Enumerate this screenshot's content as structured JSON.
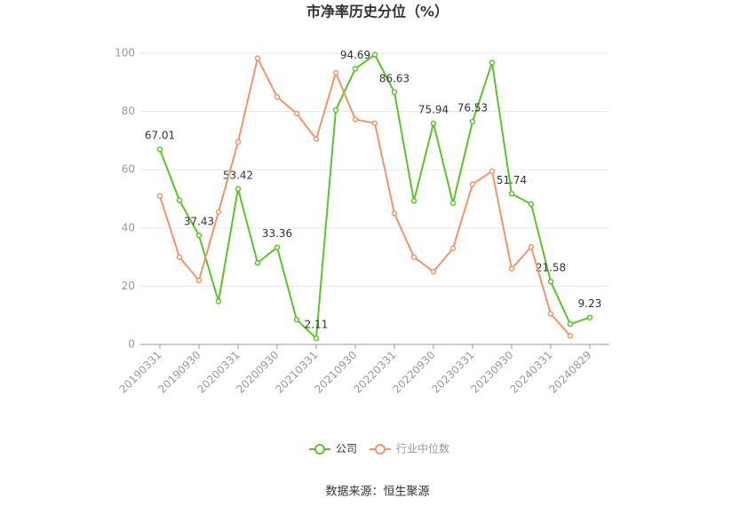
{
  "chart_data": {
    "type": "line",
    "title": "市净率历史分位（%）",
    "source": "数据来源：恒生聚源",
    "categories": [
      "20190331",
      null,
      "20190930",
      null,
      "20200331",
      null,
      "20200930",
      null,
      "20210331",
      null,
      "20210930",
      null,
      "20220331",
      null,
      "20220930",
      null,
      "20230331",
      null,
      "20230930",
      null,
      "20240331",
      null,
      "20240829"
    ],
    "series": [
      {
        "name": "公司",
        "color": "#5cc42b",
        "values": [
          67.01,
          49.5,
          37.43,
          14.8,
          53.42,
          28,
          33.36,
          8.5,
          2.11,
          80.5,
          94.69,
          99.5,
          86.63,
          49.3,
          75.94,
          48.5,
          76.53,
          96.8,
          51.74,
          48.2,
          21.58,
          7,
          9.23
        ],
        "value_labels": [
          "67.01",
          null,
          "37.43",
          null,
          "53.42",
          null,
          "33.36",
          null,
          "2.11",
          null,
          "94.69",
          null,
          "86.63",
          null,
          "75.94",
          null,
          "76.53",
          null,
          "51.74",
          null,
          "21.58",
          null,
          "9.23"
        ]
      },
      {
        "name": "行业中位数",
        "color": "#f5936b",
        "values": [
          51,
          30,
          22,
          45.5,
          69.5,
          98.3,
          85,
          79.3,
          70.5,
          93.3,
          77.3,
          76,
          45,
          30,
          25,
          33,
          55,
          59.5,
          26,
          33.5,
          10.5,
          3,
          null
        ]
      }
    ],
    "ylim": [
      0,
      100
    ],
    "yticks": [
      0,
      20,
      40,
      60,
      80,
      100
    ],
    "grid": true,
    "legend": "bottom"
  }
}
